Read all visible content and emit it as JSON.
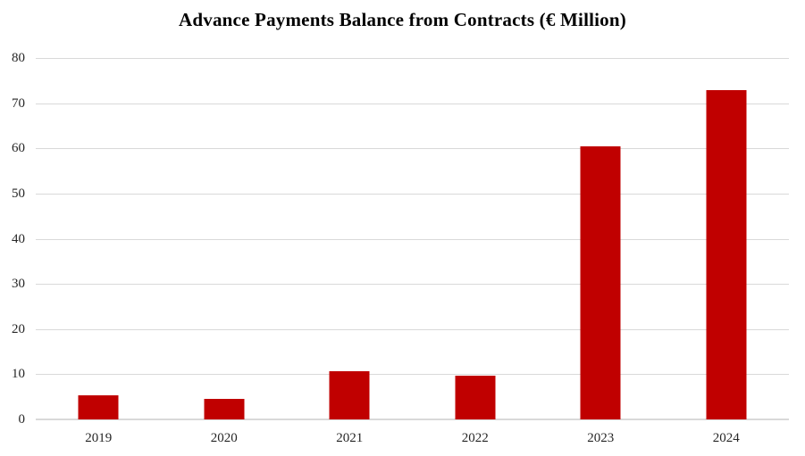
{
  "chart_data": {
    "type": "bar",
    "title": "Advance Payments Balance from Contracts (€ Million)",
    "categories": [
      "2019",
      "2020",
      "2021",
      "2022",
      "2023",
      "2024"
    ],
    "values": [
      5.4,
      4.5,
      10.6,
      9.7,
      60.4,
      72.8
    ],
    "xlabel": "",
    "ylabel": "",
    "ylim": [
      0,
      80
    ],
    "yticks": [
      0,
      10,
      20,
      30,
      40,
      50,
      60,
      70,
      80
    ],
    "grid": true,
    "legend": false,
    "legend_position": "none",
    "bar_color": "#c00000"
  },
  "colors": {
    "bar": "#c00000",
    "gridline": "#d9d9d9",
    "baseline": "#d9d9d9",
    "tick_text": "#262626",
    "title_text": "#000000",
    "background": "#ffffff"
  }
}
